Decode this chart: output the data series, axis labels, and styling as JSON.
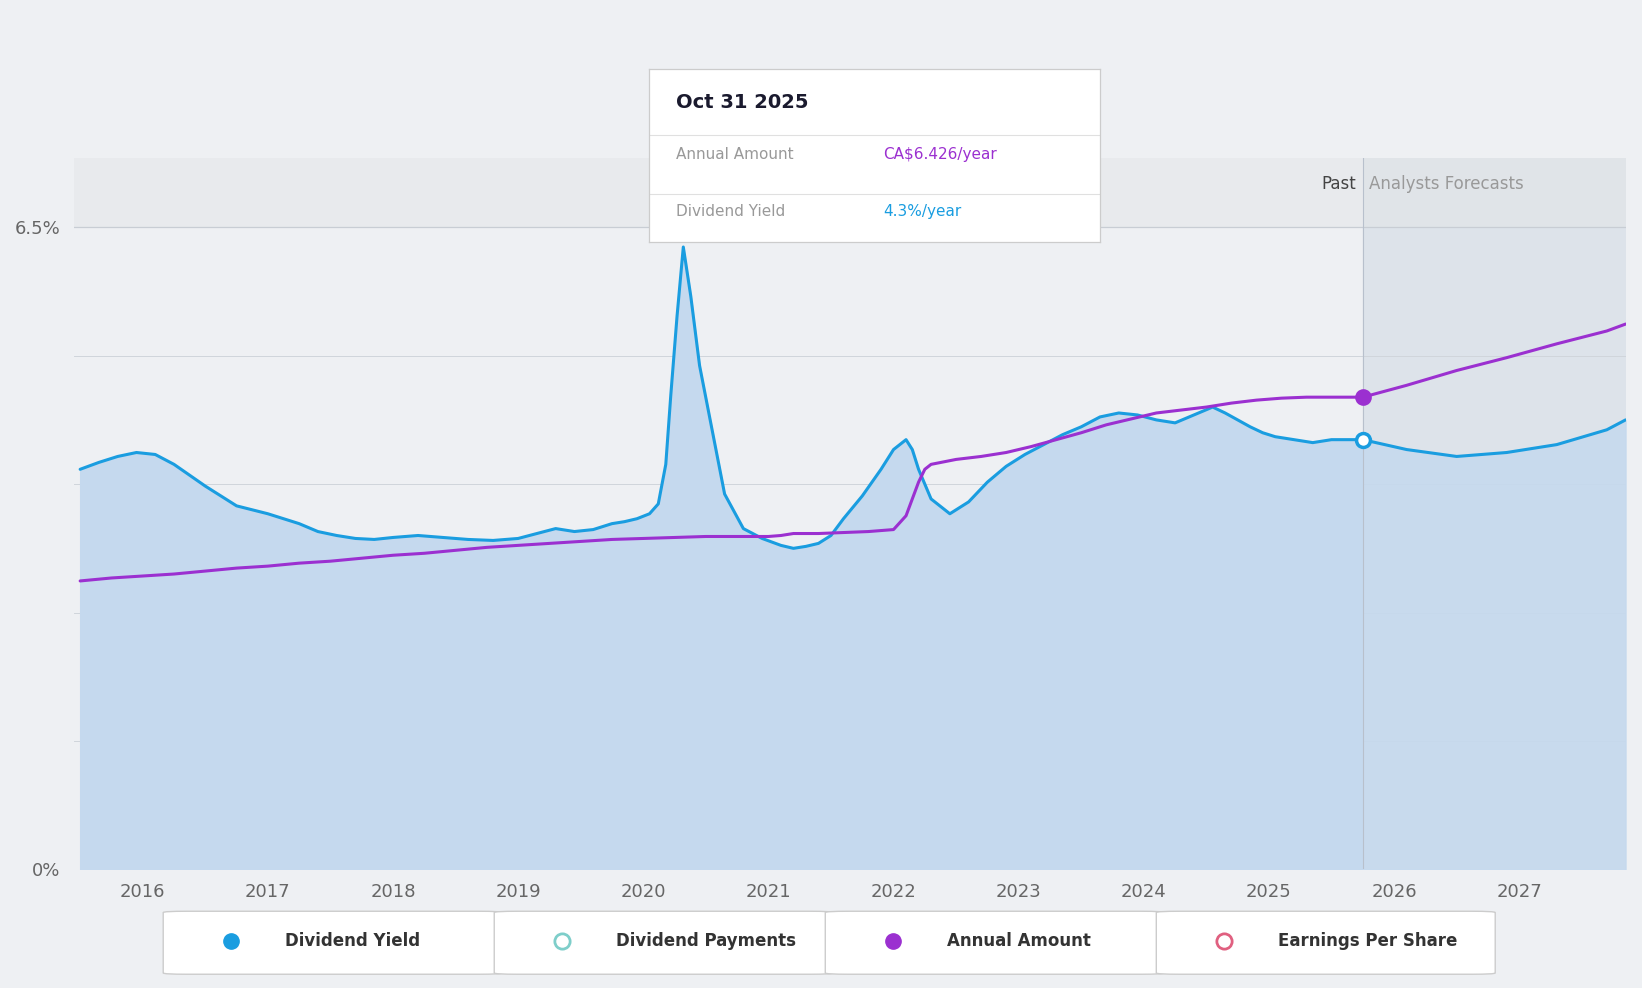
{
  "bg_color": "#eef0f3",
  "plot_bg_color": "#eef0f3",
  "fill_color": "#c5d9ee",
  "blue_line_color": "#1a9de0",
  "purple_line_color": "#9b30d0",
  "forecast_bg_color": "#dde3ea",
  "past_label": "Past",
  "forecast_label": "Analysts Forecasts",
  "tooltip_date": "Oct 31 2025",
  "tooltip_annual_label": "Annual Amount",
  "tooltip_annual_value": "CA$6.426/year",
  "tooltip_yield_label": "Dividend Yield",
  "tooltip_yield_value": "4.3%/year",
  "annual_amount_color": "#9b30d0",
  "yield_value_color": "#1a9de0",
  "xtick_years": [
    2016,
    2017,
    2018,
    2019,
    2020,
    2021,
    2022,
    2023,
    2024,
    2025,
    2026,
    2027
  ],
  "xmin": 2015.45,
  "xmax": 2027.85,
  "ymin": 0,
  "ymax": 7.2,
  "forecast_start": 2025.75,
  "forecast_end": 2027.85,
  "dot_x_blue": 2025.75,
  "dot_y_blue": 4.35,
  "dot_x_purple": 2025.75,
  "dot_y_purple": 4.78,
  "dividend_yield_x": [
    2015.5,
    2015.65,
    2015.8,
    2015.95,
    2016.1,
    2016.25,
    2016.5,
    2016.75,
    2017.0,
    2017.25,
    2017.4,
    2017.55,
    2017.7,
    2017.85,
    2018.0,
    2018.2,
    2018.4,
    2018.6,
    2018.8,
    2019.0,
    2019.15,
    2019.3,
    2019.45,
    2019.6,
    2019.75,
    2019.85,
    2019.95,
    2020.05,
    2020.12,
    2020.18,
    2020.22,
    2020.27,
    2020.32,
    2020.38,
    2020.45,
    2020.55,
    2020.65,
    2020.8,
    2020.95,
    2021.1,
    2021.2,
    2021.3,
    2021.4,
    2021.5,
    2021.6,
    2021.75,
    2021.9,
    2022.0,
    2022.1,
    2022.15,
    2022.2,
    2022.3,
    2022.45,
    2022.6,
    2022.75,
    2022.9,
    2023.05,
    2023.2,
    2023.35,
    2023.5,
    2023.65,
    2023.8,
    2023.95,
    2024.1,
    2024.25,
    2024.4,
    2024.55,
    2024.65,
    2024.75,
    2024.85,
    2024.95,
    2025.05,
    2025.2,
    2025.35,
    2025.5,
    2025.65,
    2025.75
  ],
  "dividend_yield_y": [
    4.05,
    4.12,
    4.18,
    4.22,
    4.2,
    4.1,
    3.88,
    3.68,
    3.6,
    3.5,
    3.42,
    3.38,
    3.35,
    3.34,
    3.36,
    3.38,
    3.36,
    3.34,
    3.33,
    3.35,
    3.4,
    3.45,
    3.42,
    3.44,
    3.5,
    3.52,
    3.55,
    3.6,
    3.7,
    4.1,
    4.8,
    5.6,
    6.3,
    5.8,
    5.1,
    4.45,
    3.8,
    3.45,
    3.35,
    3.28,
    3.25,
    3.27,
    3.3,
    3.38,
    3.55,
    3.78,
    4.05,
    4.25,
    4.35,
    4.25,
    4.05,
    3.75,
    3.6,
    3.72,
    3.92,
    4.08,
    4.2,
    4.3,
    4.4,
    4.48,
    4.58,
    4.62,
    4.6,
    4.55,
    4.52,
    4.6,
    4.68,
    4.62,
    4.55,
    4.48,
    4.42,
    4.38,
    4.35,
    4.32,
    4.35,
    4.35,
    4.35
  ],
  "dividend_yield_forecast_x": [
    2025.75,
    2026.1,
    2026.5,
    2026.9,
    2027.3,
    2027.7,
    2027.85
  ],
  "dividend_yield_forecast_y": [
    4.35,
    4.25,
    4.18,
    4.22,
    4.3,
    4.45,
    4.55
  ],
  "annual_amount_x": [
    2015.5,
    2015.75,
    2016.0,
    2016.25,
    2016.5,
    2016.75,
    2017.0,
    2017.25,
    2017.5,
    2017.75,
    2018.0,
    2018.25,
    2018.5,
    2018.75,
    2019.0,
    2019.25,
    2019.5,
    2019.75,
    2020.0,
    2020.25,
    2020.5,
    2020.75,
    2021.0,
    2021.1,
    2021.15,
    2021.2,
    2021.25,
    2021.3,
    2021.4,
    2021.6,
    2021.8,
    2022.0,
    2022.1,
    2022.15,
    2022.2,
    2022.25,
    2022.3,
    2022.5,
    2022.7,
    2022.9,
    2023.1,
    2023.3,
    2023.5,
    2023.7,
    2023.9,
    2024.1,
    2024.3,
    2024.5,
    2024.7,
    2024.9,
    2025.1,
    2025.3,
    2025.5,
    2025.65,
    2025.75
  ],
  "annual_amount_y": [
    2.92,
    2.95,
    2.97,
    2.99,
    3.02,
    3.05,
    3.07,
    3.1,
    3.12,
    3.15,
    3.18,
    3.2,
    3.23,
    3.26,
    3.28,
    3.3,
    3.32,
    3.34,
    3.35,
    3.36,
    3.37,
    3.37,
    3.37,
    3.38,
    3.39,
    3.4,
    3.4,
    3.4,
    3.4,
    3.41,
    3.42,
    3.44,
    3.58,
    3.75,
    3.92,
    4.05,
    4.1,
    4.15,
    4.18,
    4.22,
    4.28,
    4.35,
    4.42,
    4.5,
    4.56,
    4.62,
    4.65,
    4.68,
    4.72,
    4.75,
    4.77,
    4.78,
    4.78,
    4.78,
    4.78
  ],
  "annual_amount_forecast_x": [
    2025.75,
    2026.1,
    2026.5,
    2026.9,
    2027.3,
    2027.7,
    2027.85
  ],
  "annual_amount_forecast_y": [
    4.78,
    4.9,
    5.05,
    5.18,
    5.32,
    5.45,
    5.52
  ],
  "legend_items": [
    {
      "label": "Dividend Yield",
      "color": "#1a9de0",
      "filled": true
    },
    {
      "label": "Dividend Payments",
      "color": "#7ececa",
      "filled": false
    },
    {
      "label": "Annual Amount",
      "color": "#9b30d0",
      "filled": true
    },
    {
      "label": "Earnings Per Share",
      "color": "#e06080",
      "filled": false
    }
  ]
}
